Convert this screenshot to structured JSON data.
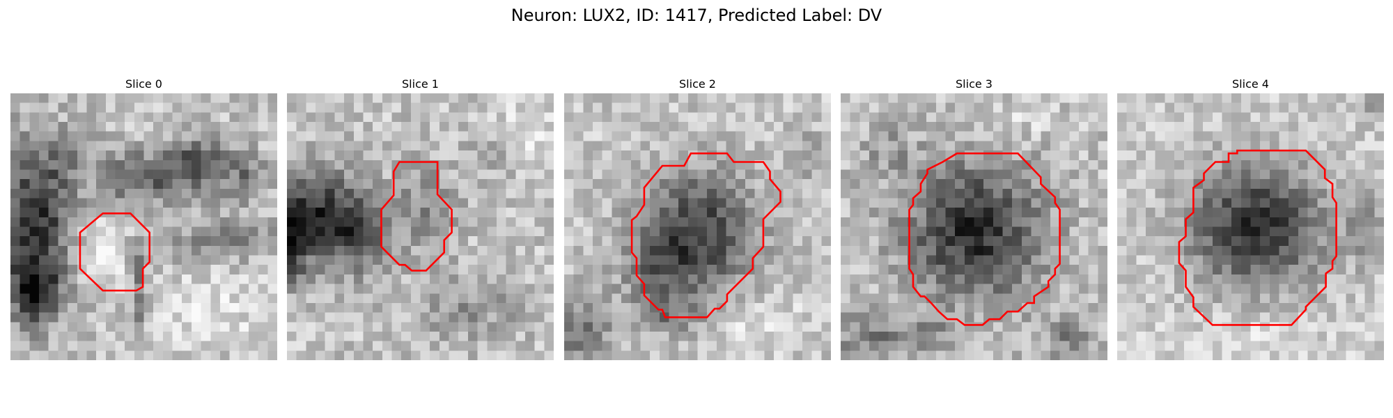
{
  "title": "Neuron: LUX2, ID: 1417, Predicted Label: DV",
  "contour_color": "#ff0000",
  "panels": [
    {
      "label": "Slice 0",
      "tone": "light-textured",
      "blob": "light-ring"
    },
    {
      "label": "Slice 1",
      "tone": "light-textured",
      "blob": "faint"
    },
    {
      "label": "Slice 2",
      "tone": "mid",
      "blob": "dark-blob"
    },
    {
      "label": "Slice 3",
      "tone": "mid",
      "blob": "dark-blob"
    },
    {
      "label": "Slice 4",
      "tone": "light",
      "blob": "dark-blob"
    }
  ]
}
